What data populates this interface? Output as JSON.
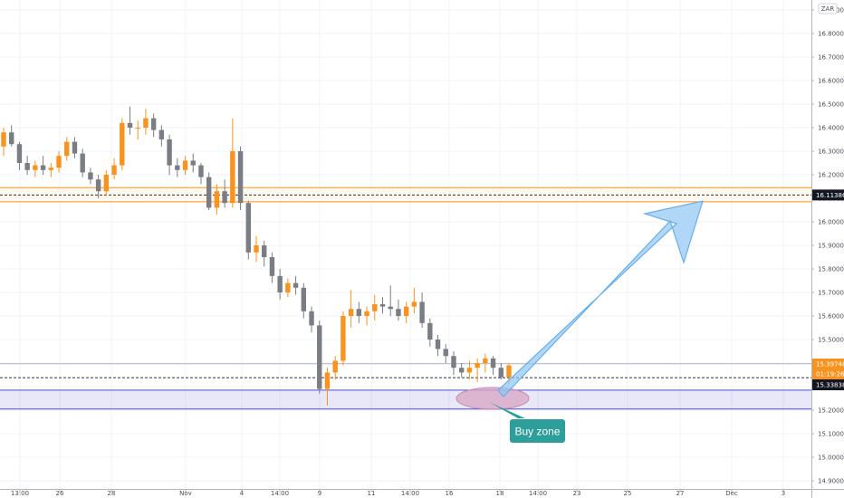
{
  "chart_data": {
    "type": "candlestick",
    "currency_label": "ZAR",
    "y_range": [
      14.9,
      16.94
    ],
    "y_ticks": [
      "16.90000",
      "16.80000",
      "16.70000",
      "16.60000",
      "16.50000",
      "16.40000",
      "16.30000",
      "16.20000",
      "16.10000",
      "16.00000",
      "15.90000",
      "15.80000",
      "15.70000",
      "15.60000",
      "15.50000",
      "15.40000",
      "15.30000",
      "15.20000",
      "15.10000",
      "15.00000",
      "14.90000"
    ],
    "x_ticks": [
      "13:00",
      "26",
      "28",
      "Nov",
      "4",
      "14:00",
      "9",
      "11",
      "14:00",
      "16",
      "18",
      "14:00",
      "23",
      "25",
      "27",
      "Dec",
      "3"
    ],
    "price_badges": [
      {
        "label": "15.39748",
        "color": "#f7931e"
      },
      {
        "label": "01:19:26",
        "color": "#f7931e"
      },
      {
        "label": "15.33838",
        "color": "#131722"
      }
    ],
    "resistance_badge": {
      "label": "16.11386",
      "color": "#131722"
    },
    "resistance_zone": {
      "high": 16.145,
      "low": 16.085
    },
    "resistance_line": 16.114,
    "buy_zone_band": {
      "high": 15.285,
      "low": 15.205
    },
    "current_price_line": 15.338,
    "prev_price_line": 15.397,
    "buy_zone_label": "Buy zone",
    "arrow_target": 16.1,
    "colors": {
      "up": "#f7931e",
      "down": "#7b7d85",
      "zone": "#4d4dcc",
      "arrow": "#90c6f2",
      "callout": "#2e9e9a",
      "ellipse": "#d8a6c3"
    },
    "candles": [
      [
        16.32,
        16.4,
        16.28,
        16.38
      ],
      [
        16.38,
        16.41,
        16.32,
        16.33
      ],
      [
        16.33,
        16.34,
        16.22,
        16.25
      ],
      [
        16.25,
        16.28,
        16.2,
        16.22
      ],
      [
        16.22,
        16.26,
        16.19,
        16.24
      ],
      [
        16.24,
        16.28,
        16.2,
        16.22
      ],
      [
        16.22,
        16.25,
        16.19,
        16.23
      ],
      [
        16.23,
        16.3,
        16.21,
        16.28
      ],
      [
        16.28,
        16.36,
        16.26,
        16.34
      ],
      [
        16.34,
        16.36,
        16.27,
        16.29
      ],
      [
        16.29,
        16.31,
        16.19,
        16.21
      ],
      [
        16.21,
        16.23,
        16.16,
        16.18
      ],
      [
        16.18,
        16.2,
        16.1,
        16.13
      ],
      [
        16.13,
        16.22,
        16.11,
        16.2
      ],
      [
        16.2,
        16.27,
        16.18,
        16.24
      ],
      [
        16.24,
        16.44,
        16.22,
        16.42
      ],
      [
        16.42,
        16.49,
        16.37,
        16.4
      ],
      [
        16.4,
        16.43,
        16.35,
        16.4
      ],
      [
        16.4,
        16.48,
        16.37,
        16.44
      ],
      [
        16.44,
        16.46,
        16.36,
        16.39
      ],
      [
        16.39,
        16.41,
        16.32,
        16.35
      ],
      [
        16.35,
        16.37,
        16.2,
        16.24
      ],
      [
        16.24,
        16.27,
        16.19,
        16.22
      ],
      [
        16.22,
        16.28,
        16.2,
        16.26
      ],
      [
        16.26,
        16.29,
        16.21,
        16.24
      ],
      [
        16.24,
        16.25,
        16.16,
        16.19
      ],
      [
        16.19,
        16.21,
        16.05,
        16.06
      ],
      [
        16.06,
        16.16,
        16.03,
        16.13
      ],
      [
        16.13,
        16.18,
        16.06,
        16.08
      ],
      [
        16.08,
        16.44,
        16.06,
        16.3
      ],
      [
        16.3,
        16.32,
        16.05,
        16.08
      ],
      [
        16.08,
        16.09,
        15.84,
        15.87
      ],
      [
        15.87,
        15.94,
        15.83,
        15.9
      ],
      [
        15.9,
        15.92,
        15.81,
        15.85
      ],
      [
        15.85,
        15.87,
        15.74,
        15.77
      ],
      [
        15.77,
        15.8,
        15.67,
        15.7
      ],
      [
        15.7,
        15.76,
        15.68,
        15.74
      ],
      [
        15.74,
        15.77,
        15.69,
        15.72
      ],
      [
        15.72,
        15.74,
        15.59,
        15.62
      ],
      [
        15.62,
        15.64,
        15.53,
        15.56
      ],
      [
        15.56,
        15.58,
        15.27,
        15.29
      ],
      [
        15.29,
        15.38,
        15.22,
        15.36
      ],
      [
        15.36,
        15.43,
        15.33,
        15.41
      ],
      [
        15.41,
        15.62,
        15.39,
        15.6
      ],
      [
        15.6,
        15.71,
        15.55,
        15.63
      ],
      [
        15.63,
        15.66,
        15.57,
        15.6
      ],
      [
        15.6,
        15.64,
        15.56,
        15.62
      ],
      [
        15.62,
        15.69,
        15.58,
        15.65
      ],
      [
        15.65,
        15.68,
        15.61,
        15.64
      ],
      [
        15.64,
        15.73,
        15.6,
        15.63
      ],
      [
        15.63,
        15.67,
        15.58,
        15.6
      ],
      [
        15.6,
        15.66,
        15.57,
        15.64
      ],
      [
        15.64,
        15.72,
        15.61,
        15.66
      ],
      [
        15.66,
        15.7,
        15.55,
        15.57
      ],
      [
        15.57,
        15.59,
        15.47,
        15.5
      ],
      [
        15.5,
        15.52,
        15.43,
        15.46
      ],
      [
        15.46,
        15.48,
        15.4,
        15.43
      ],
      [
        15.43,
        15.45,
        15.35,
        15.38
      ],
      [
        15.38,
        15.4,
        15.34,
        15.36
      ],
      [
        15.36,
        15.41,
        15.33,
        15.38
      ],
      [
        15.38,
        15.42,
        15.32,
        15.4
      ],
      [
        15.4,
        15.44,
        15.36,
        15.42
      ],
      [
        15.42,
        15.43,
        15.35,
        15.38
      ],
      [
        15.38,
        15.4,
        15.33,
        15.34
      ],
      [
        15.34,
        15.4,
        15.31,
        15.39
      ]
    ]
  }
}
